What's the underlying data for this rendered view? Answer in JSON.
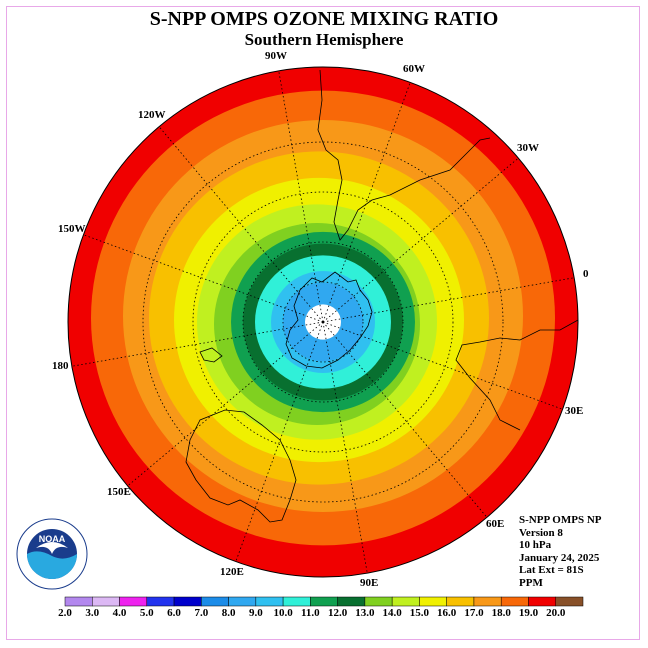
{
  "header": {
    "title": "S-NPP OMPS OZONE MIXING RATIO",
    "subtitle": "Southern Hemisphere"
  },
  "longitude_labels": [
    {
      "text": "90W",
      "lon": -90
    },
    {
      "text": "60W",
      "lon": -60
    },
    {
      "text": "30W",
      "lon": -30
    },
    {
      "text": "0",
      "lon": 0
    },
    {
      "text": "30E",
      "lon": 30
    },
    {
      "text": "60E",
      "lon": 60
    },
    {
      "text": "90E",
      "lon": 90
    },
    {
      "text": "120E",
      "lon": 120
    },
    {
      "text": "150E",
      "lon": 150
    },
    {
      "text": "180",
      "lon": 180
    },
    {
      "text": "150W",
      "lon": -150
    },
    {
      "text": "120W",
      "lon": -120
    }
  ],
  "info": {
    "line1": "S-NPP OMPS NP",
    "line2": "Version 8",
    "line3": "10 hPa",
    "line4": "January 24, 2025",
    "line5": "Lat Ext = 81S",
    "line6": "PPM"
  },
  "colorbar": {
    "ticks": [
      "2.0",
      "3.0",
      "4.0",
      "5.0",
      "6.0",
      "7.0",
      "8.0",
      "9.0",
      "10.0",
      "11.0",
      "12.0",
      "13.0",
      "14.0",
      "15.0",
      "16.0",
      "17.0",
      "18.0",
      "19.0",
      "20.0"
    ],
    "colors": [
      "#b388ee",
      "#dcb8f4",
      "#ee22ee",
      "#2233ee",
      "#0000cc",
      "#1c8ce8",
      "#30a8f0",
      "#30c0f0",
      "#30f0d8",
      "#10a050",
      "#087030",
      "#80d020",
      "#c0f020",
      "#f0f000",
      "#f8c000",
      "#f89818",
      "#f86808",
      "#f00000",
      "#885028"
    ]
  },
  "map": {
    "ring_colors": [
      "#ffffff",
      "#30a8f0",
      "#30c0f0",
      "#30f0d8",
      "#087030",
      "#10a050",
      "#80d020",
      "#c0f020",
      "#f0f000",
      "#f8c000",
      "#f89818",
      "#f86808",
      "#f00000"
    ]
  },
  "logo": {
    "text": "NOAA",
    "ring_text": "NATIONAL OCEANIC AND ATMOSPHERIC ADMINISTRATION",
    "ring_text_bottom": "U.S. DEPARTMENT OF COMMERCE"
  }
}
